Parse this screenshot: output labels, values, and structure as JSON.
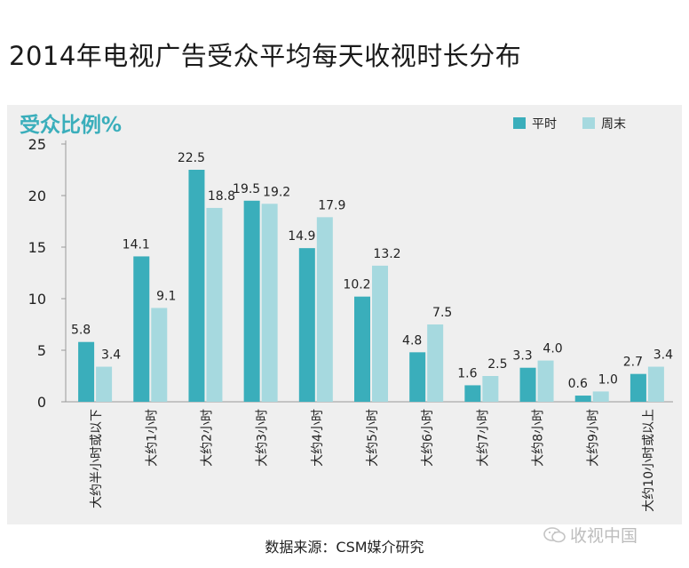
{
  "title": "2014年电视广告受众平均每天收视时长分布",
  "source": "数据来源：CSM媒介研究",
  "watermark": "收视中国",
  "colors": {
    "weekday": "#3aaebb",
    "weekend": "#a6d9df",
    "ylabel": "#3aaebb",
    "panel": "#efefef"
  },
  "chart_data": {
    "type": "bar",
    "ylabel": "受众比例%",
    "ylim": [
      0,
      25
    ],
    "yticks": [
      0,
      5,
      10,
      15,
      20,
      25
    ],
    "grid": false,
    "legend_position": "top-right",
    "categories": [
      "大约半小时或以下",
      "大约1小时",
      "大约2小时",
      "大约3小时",
      "大约4小时",
      "大约5小时",
      "大约6小时",
      "大约7小时",
      "大约8小时",
      "大约9小时",
      "大约10小时或以上"
    ],
    "series": [
      {
        "name": "平时",
        "values": [
          5.8,
          14.1,
          22.5,
          19.5,
          14.9,
          10.2,
          4.8,
          1.6,
          3.3,
          0.6,
          2.7
        ]
      },
      {
        "name": "周末",
        "values": [
          3.4,
          9.1,
          18.8,
          19.2,
          17.9,
          13.2,
          7.5,
          2.5,
          4.0,
          1.0,
          3.4
        ]
      }
    ]
  }
}
